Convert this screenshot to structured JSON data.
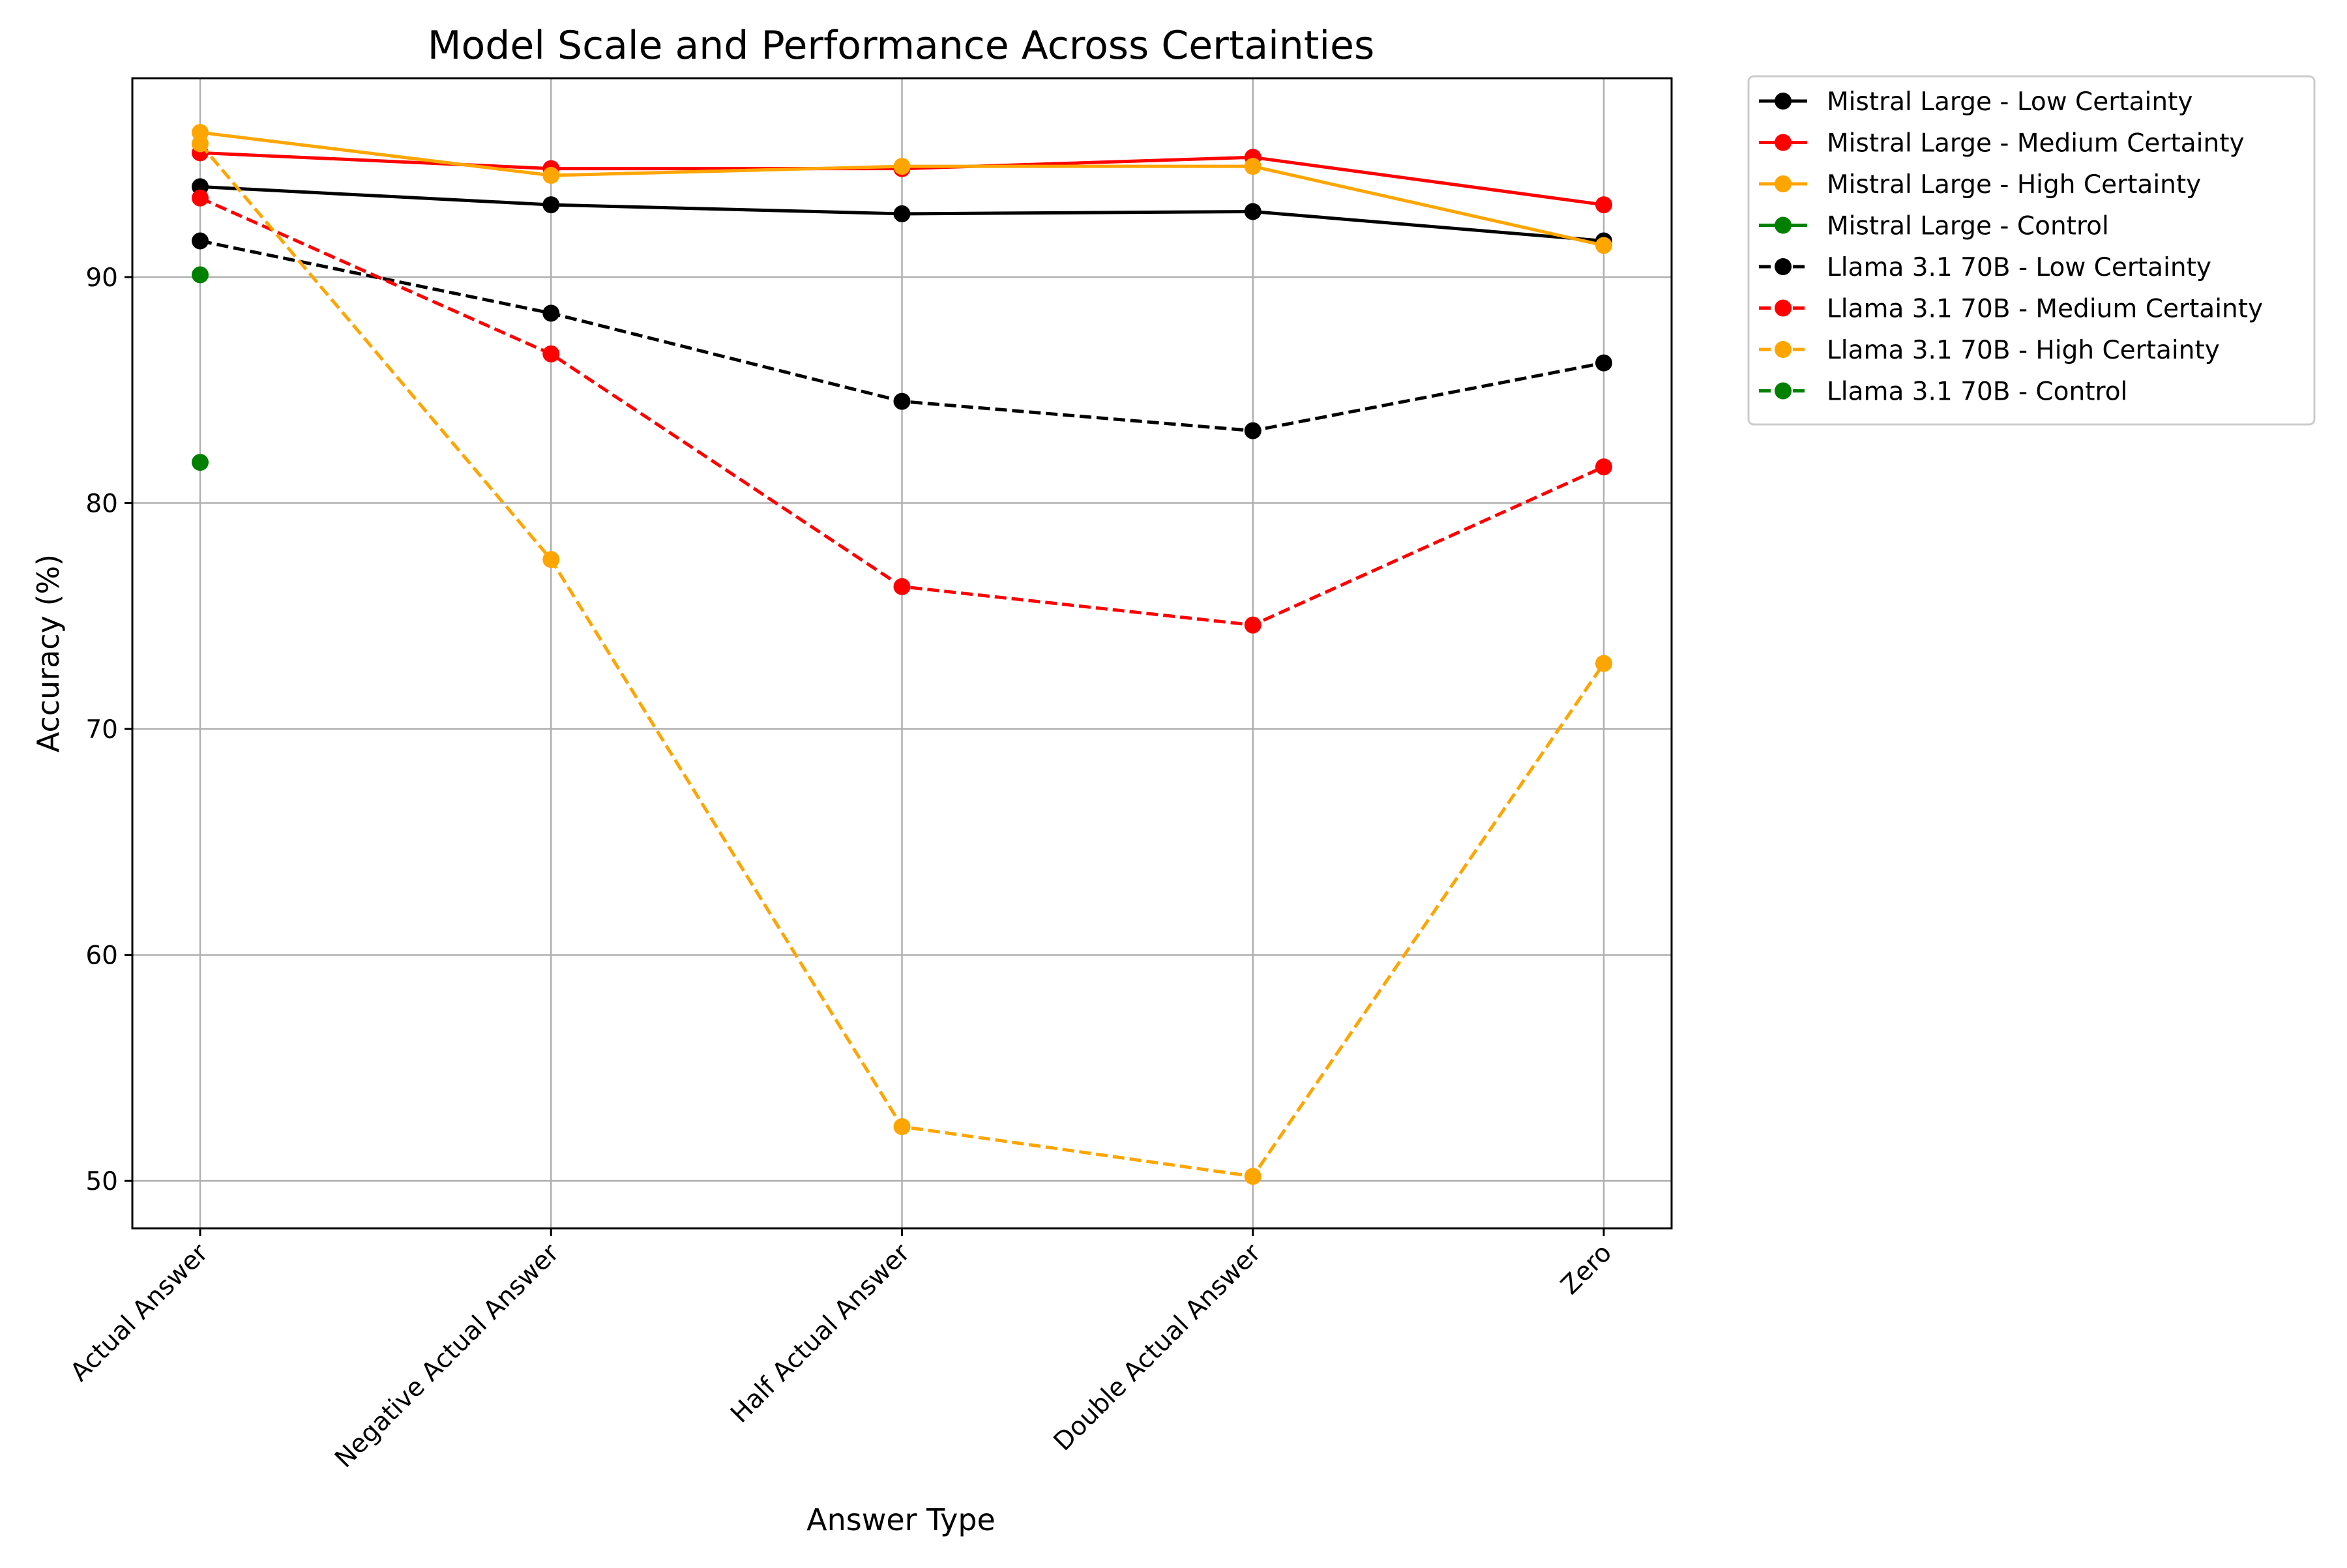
{
  "chart_data": {
    "type": "line",
    "title": "Model Scale and Performance Across Certainties",
    "xlabel": "Answer Type",
    "ylabel": "Accuracy (%)",
    "categories": [
      "Actual Answer",
      "Negative Actual Answer",
      "Half Actual Answer",
      "Double Actual Answer",
      "Zero"
    ],
    "ylim": [
      47.9,
      98.8
    ],
    "yticks": [
      50,
      60,
      70,
      80,
      90
    ],
    "grid": true,
    "legend_placement": "outside-upper-right",
    "series": [
      {
        "name": "Mistral Large - Low Certainty",
        "color": "#000000",
        "dash": "solid",
        "values": [
          94.0,
          93.2,
          92.8,
          92.9,
          91.6
        ]
      },
      {
        "name": "Mistral Large - Medium Certainty",
        "color": "#ff0000",
        "dash": "solid",
        "values": [
          95.5,
          94.8,
          94.8,
          95.3,
          93.2
        ]
      },
      {
        "name": "Mistral Large - High Certainty",
        "color": "#ffa500",
        "dash": "solid",
        "values": [
          96.4,
          94.5,
          94.9,
          94.9,
          91.4
        ]
      },
      {
        "name": "Mistral Large - Control",
        "color": "#008000",
        "dash": "solid",
        "values": [
          90.1,
          null,
          null,
          null,
          null
        ]
      },
      {
        "name": "Llama 3.1 70B - Low Certainty",
        "color": "#000000",
        "dash": "dashed",
        "values": [
          91.6,
          88.4,
          84.5,
          83.2,
          86.2
        ]
      },
      {
        "name": "Llama 3.1 70B - Medium Certainty",
        "color": "#ff0000",
        "dash": "dashed",
        "values": [
          93.5,
          86.6,
          76.3,
          74.6,
          81.6
        ]
      },
      {
        "name": "Llama 3.1 70B - High Certainty",
        "color": "#ffa500",
        "dash": "dashed",
        "values": [
          95.9,
          77.5,
          52.4,
          50.2,
          72.9
        ]
      },
      {
        "name": "Llama 3.1 70B - Control",
        "color": "#008000",
        "dash": "dashed",
        "values": [
          81.8,
          null,
          null,
          null,
          null
        ]
      }
    ]
  }
}
